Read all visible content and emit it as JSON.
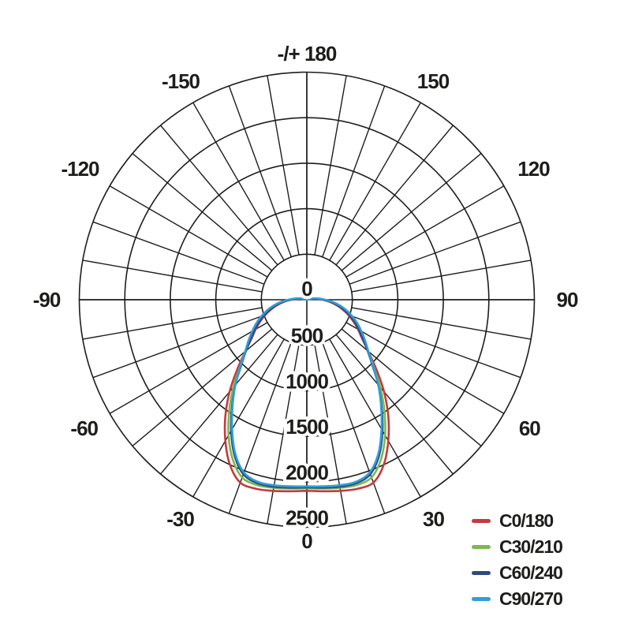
{
  "chart_data": {
    "type": "line",
    "subtype": "polar-photometric",
    "title": "",
    "angle_unit": "degrees",
    "zero_direction": "down",
    "symmetric_mirror": true,
    "radial_max": 2500,
    "radial_ticks": [
      0,
      500,
      1000,
      1500,
      2000,
      2500
    ],
    "grid_spoke_step_deg": 10,
    "grid_on": true,
    "legend_position": "bottom-right",
    "angular_labels": [
      {
        "angle": 180,
        "text": "-/+ 180"
      },
      {
        "angle": -150,
        "text": "-150"
      },
      {
        "angle": 150,
        "text": "150"
      },
      {
        "angle": -120,
        "text": "-120"
      },
      {
        "angle": 120,
        "text": "120"
      },
      {
        "angle": -90,
        "text": "-90"
      },
      {
        "angle": 90,
        "text": "90"
      },
      {
        "angle": -60,
        "text": "-60"
      },
      {
        "angle": 60,
        "text": "60"
      },
      {
        "angle": -30,
        "text": "-30"
      },
      {
        "angle": 30,
        "text": "30"
      },
      {
        "angle": 0,
        "text": "0"
      }
    ],
    "angles_deg": [
      0,
      5,
      10,
      15,
      20,
      25,
      30,
      35,
      40,
      45,
      50,
      55,
      60,
      65,
      70,
      75,
      80,
      85,
      90,
      95,
      100,
      105,
      110
    ],
    "series": [
      {
        "name": "C0/180",
        "color": "#c43a3c",
        "values": [
          2100,
          2112,
          2132,
          2150,
          2138,
          2000,
          1790,
          1560,
          1320,
          1080,
          880,
          740,
          650,
          565,
          485,
          405,
          328,
          250,
          172,
          110,
          58,
          20,
          0
        ]
      },
      {
        "name": "C30/210",
        "color": "#7cb84e",
        "values": [
          2072,
          2082,
          2098,
          2108,
          2078,
          1930,
          1720,
          1485,
          1255,
          1035,
          880,
          765,
          675,
          593,
          513,
          433,
          353,
          272,
          190,
          128,
          80,
          33,
          0
        ]
      },
      {
        "name": "C60/240",
        "color": "#2d4b82",
        "values": [
          2062,
          2072,
          2086,
          2088,
          2040,
          1882,
          1662,
          1432,
          1222,
          1020,
          872,
          752,
          662,
          582,
          502,
          422,
          342,
          262,
          180,
          118,
          70,
          26,
          0
        ]
      },
      {
        "name": "C90/270",
        "color": "#2f9fd9",
        "values": [
          2050,
          2058,
          2070,
          2072,
          2020,
          1862,
          1642,
          1422,
          1222,
          1030,
          884,
          782,
          692,
          612,
          532,
          452,
          372,
          287,
          202,
          140,
          90,
          38,
          0
        ]
      }
    ],
    "colors": {
      "grid": "#1d1d1b",
      "text": "#1d1d1b",
      "background": "#ffffff"
    }
  }
}
